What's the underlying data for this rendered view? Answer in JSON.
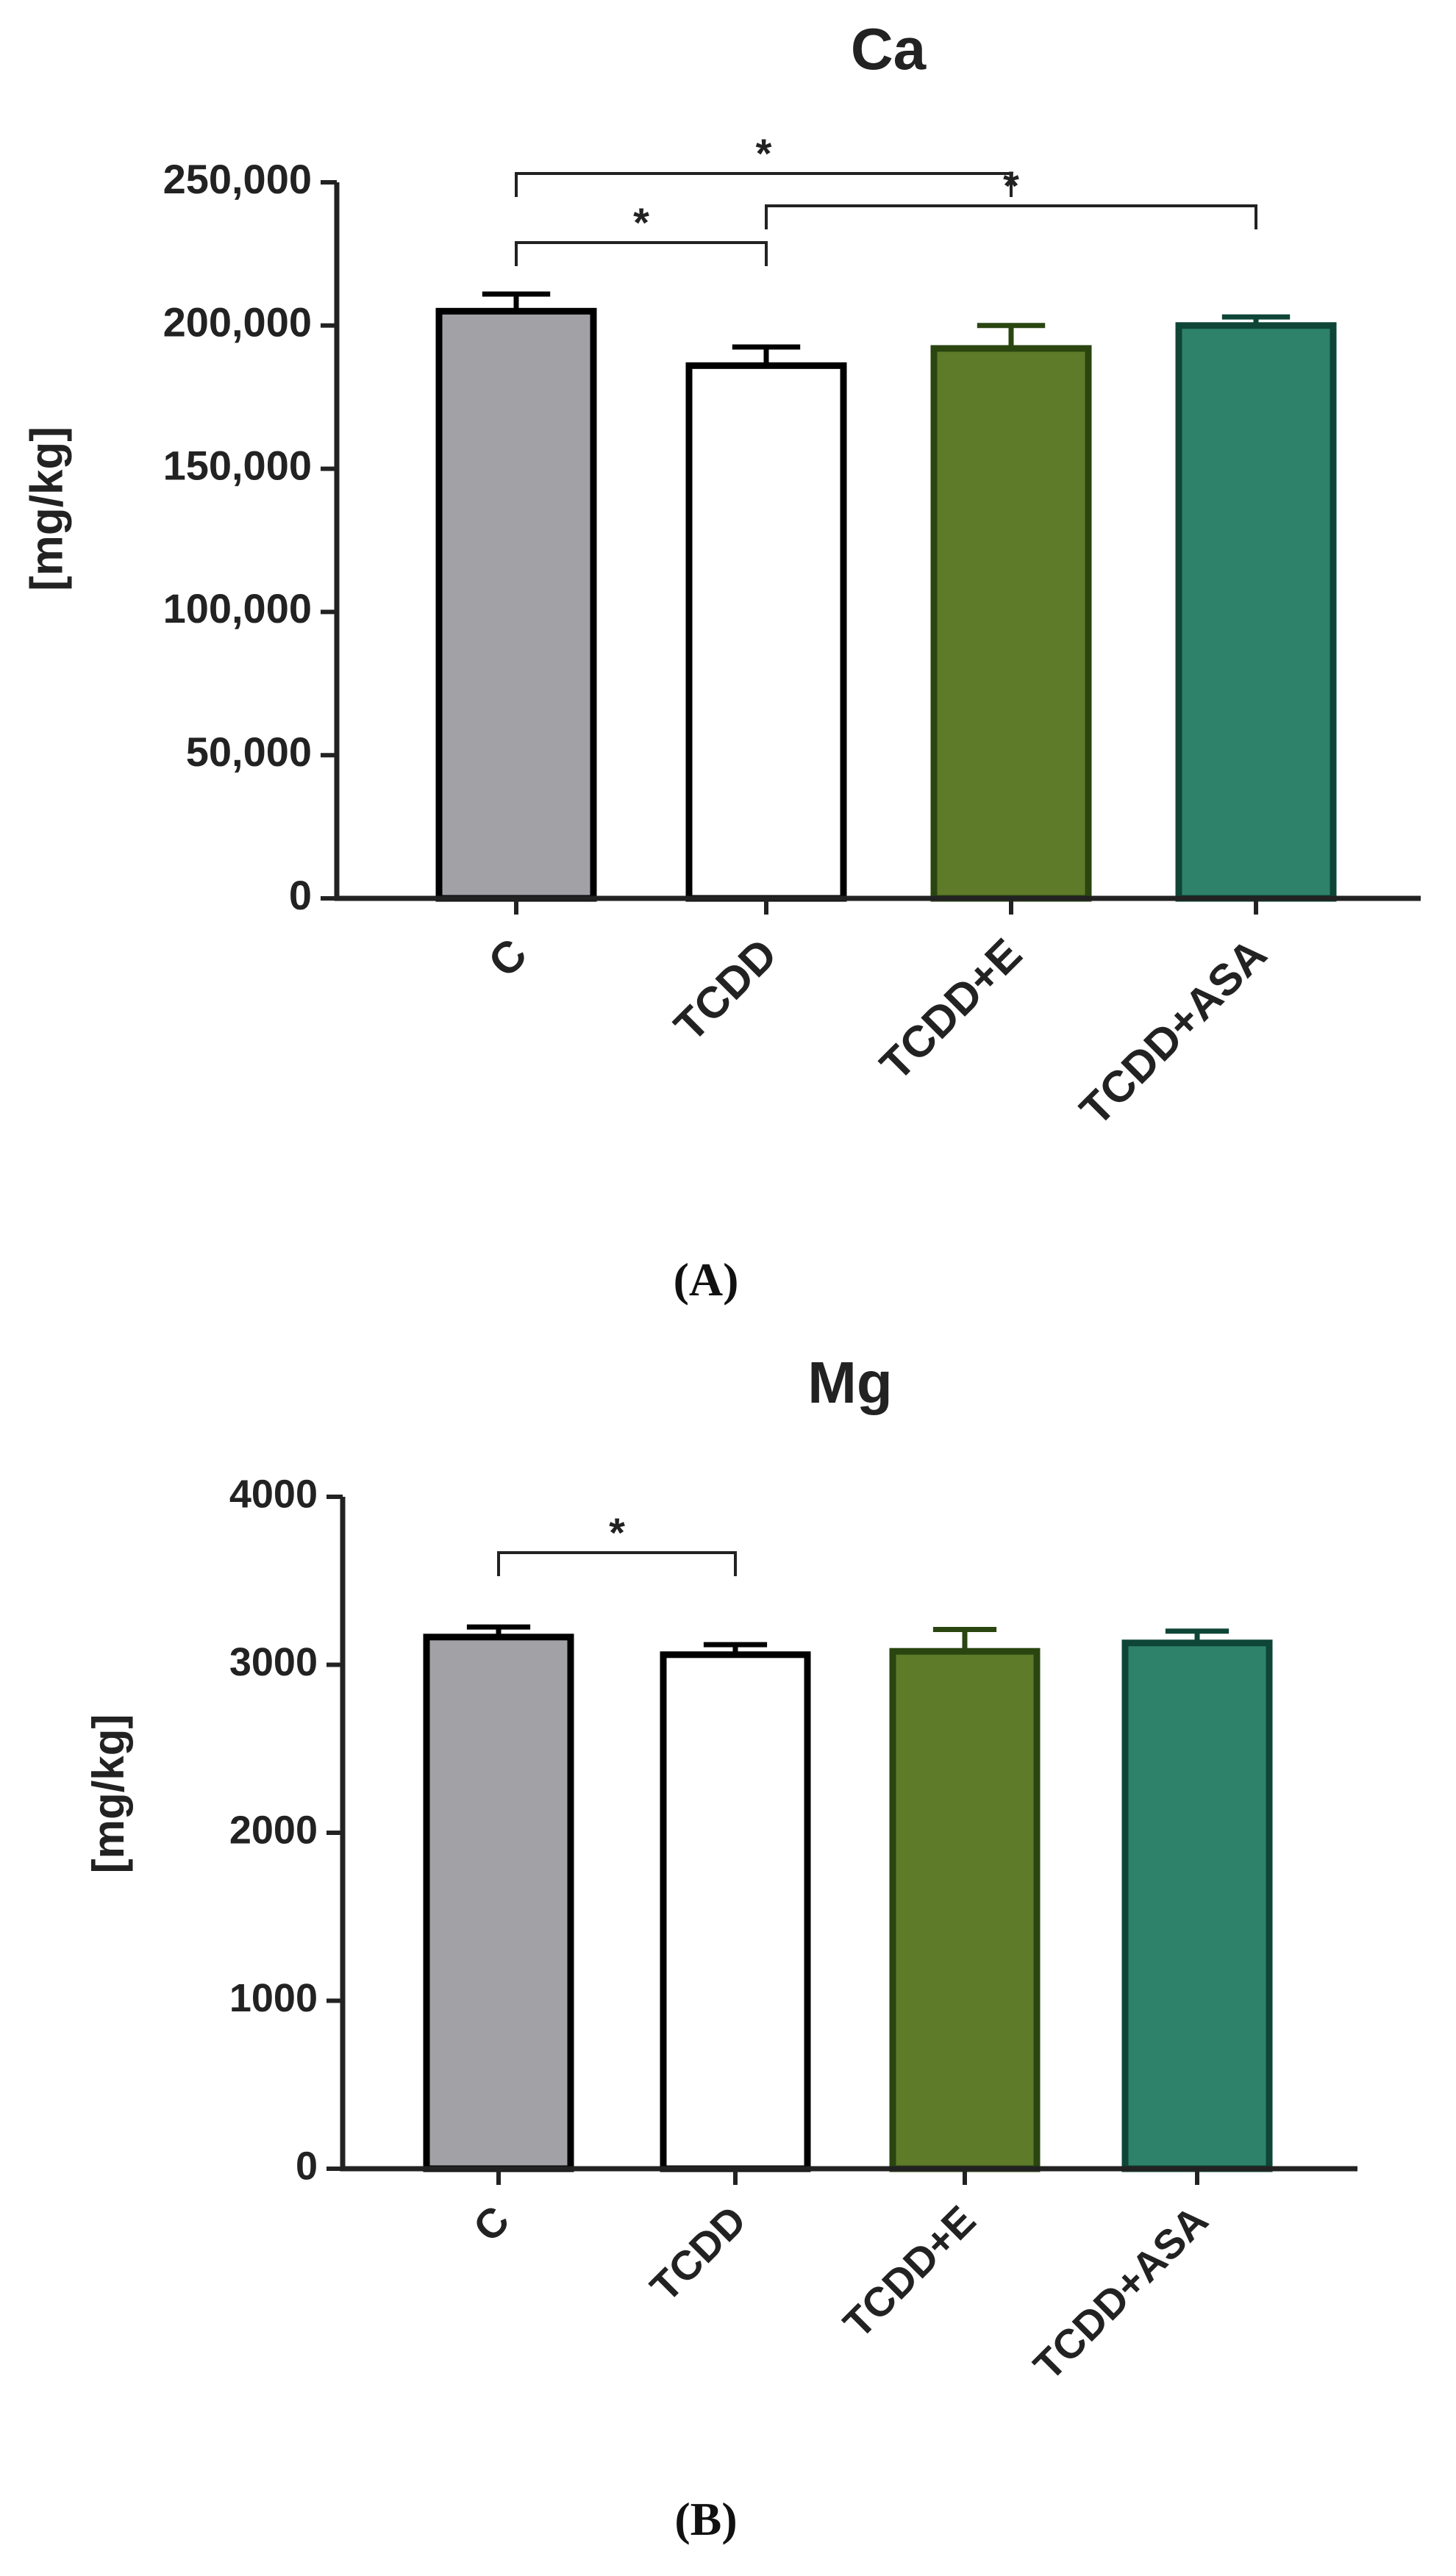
{
  "chart_data": [
    {
      "type": "bar",
      "panel_label": "(A)",
      "title": "Ca",
      "xlabel": "",
      "ylabel": "[mg/kg]",
      "ylim": [
        0,
        250000
      ],
      "yticks": [
        0,
        50000,
        100000,
        150000,
        200000,
        250000
      ],
      "ytick_labels": [
        "0",
        "50,000",
        "100,000",
        "150,000",
        "200,000",
        "250,000"
      ],
      "categories": [
        "C",
        "TCDD",
        "TCDD+E",
        "TCDD+ASA"
      ],
      "values": [
        205000,
        186000,
        192000,
        200000
      ],
      "errors": [
        6000,
        6500,
        8000,
        3000
      ],
      "colors": {
        "fill": [
          "#a1a1a6",
          "#ffffff",
          "#5e7b2a",
          "#2e826a"
        ],
        "stroke": [
          "#000000",
          "#000000",
          "#2a4510",
          "#0e4536"
        ]
      },
      "significance": [
        {
          "from": "C",
          "to": "TCDD",
          "label": "*"
        },
        {
          "from": "C",
          "to": "TCDD+E",
          "label": "*"
        },
        {
          "from": "TCDD",
          "to": "TCDD+ASA",
          "label": "*"
        }
      ]
    },
    {
      "type": "bar",
      "panel_label": "(B)",
      "title": "Mg",
      "xlabel": "",
      "ylabel": "[mg/kg]",
      "ylim": [
        0,
        4000
      ],
      "yticks": [
        0,
        1000,
        2000,
        3000,
        4000
      ],
      "ytick_labels": [
        "0",
        "1000",
        "2000",
        "3000",
        "4000"
      ],
      "categories": [
        "C",
        "TCDD",
        "TCDD+E",
        "TCDD+ASA"
      ],
      "values": [
        3165,
        3060,
        3080,
        3130
      ],
      "errors": [
        60,
        60,
        130,
        70
      ],
      "colors": {
        "fill": [
          "#a1a1a6",
          "#ffffff",
          "#5e7b2a",
          "#2e826a"
        ],
        "stroke": [
          "#000000",
          "#000000",
          "#2a4510",
          "#0e4536"
        ]
      },
      "significance": [
        {
          "from": "C",
          "to": "TCDD",
          "label": "*"
        }
      ]
    }
  ]
}
